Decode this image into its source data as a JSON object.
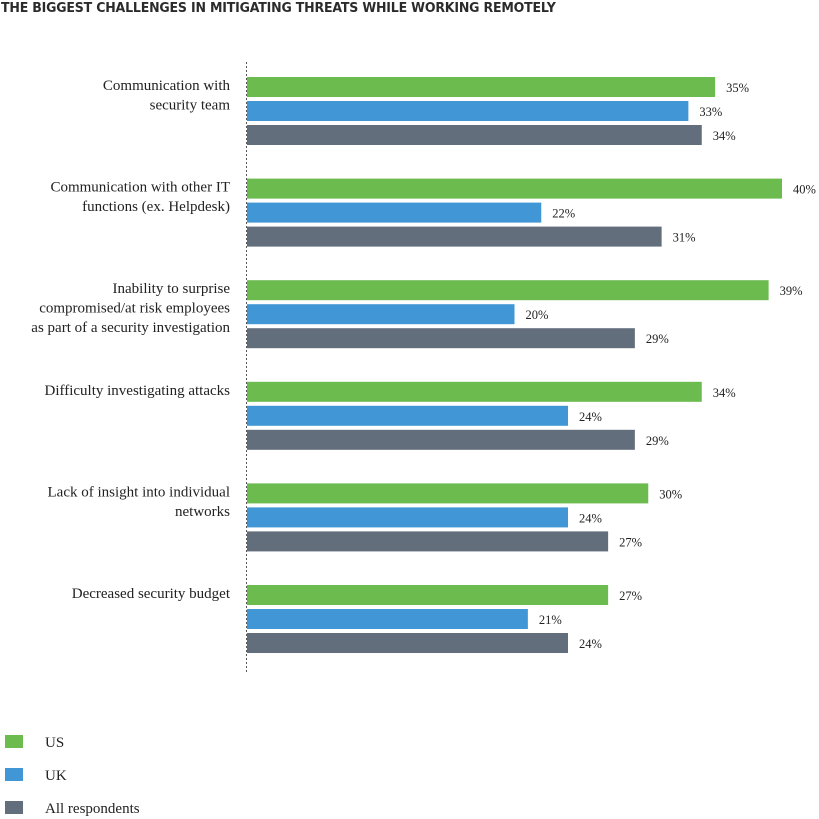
{
  "chart_data": {
    "type": "bar",
    "orientation": "horizontal",
    "title": "THE BIGGEST CHALLENGES IN MITIGATING THREATS WHILE WORKING REMOTELY",
    "categories": [
      [
        "Communication with",
        "security team"
      ],
      [
        "Communication with other IT",
        "functions (ex. Helpdesk)"
      ],
      [
        "Inability to surprise",
        "compromised/at risk employees",
        "as part of a security investigation"
      ],
      [
        "Difficulty investigating attacks"
      ],
      [
        "Lack of insight into individual",
        "networks"
      ],
      [
        "Decreased security budget"
      ]
    ],
    "series": [
      {
        "name": "US",
        "color": "#6cbb4f",
        "values": [
          35,
          40,
          39,
          34,
          30,
          27
        ]
      },
      {
        "name": "UK",
        "color": "#4197d5",
        "values": [
          33,
          22,
          20,
          24,
          24,
          21
        ]
      },
      {
        "name": "All respondents",
        "color": "#626e7c",
        "values": [
          34,
          31,
          29,
          29,
          27,
          24
        ]
      }
    ],
    "value_suffix": "%",
    "xlim": [
      0,
      40
    ],
    "grid": false,
    "legend": "bottom-left"
  }
}
